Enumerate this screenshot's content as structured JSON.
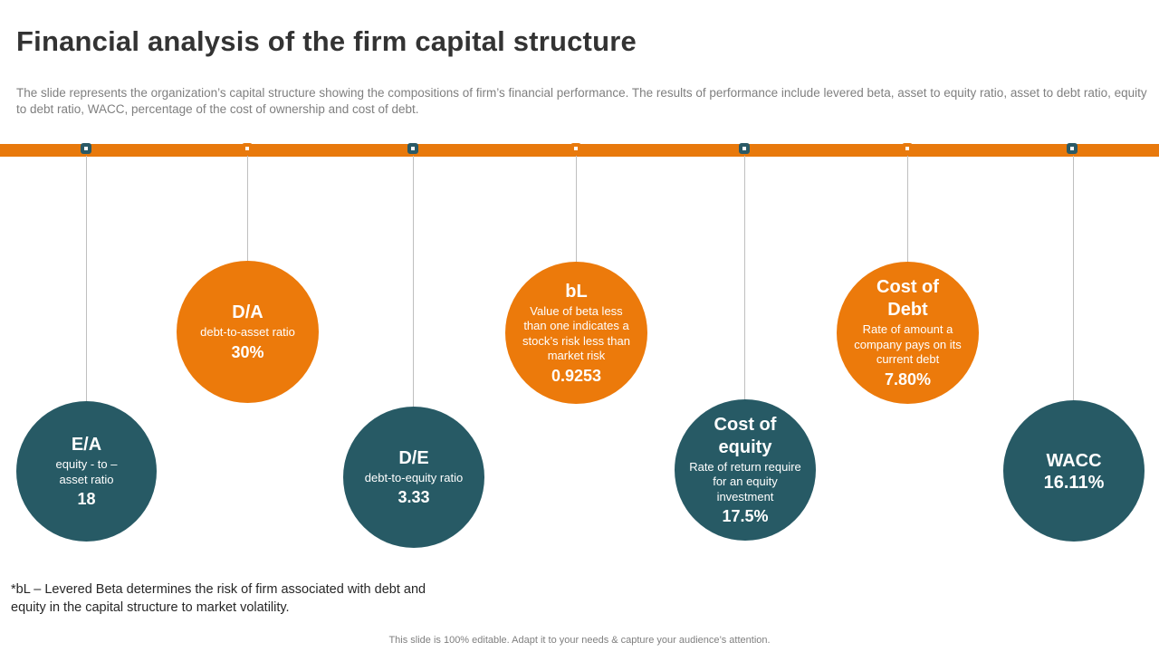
{
  "title": "Financial analysis of the firm capital structure",
  "subtitle": "The slide represents the organization’s capital structure showing the compositions of firm’s financial performance. The results of performance include levered beta, asset to equity ratio, asset to debt ratio, equity to debt ratio, WACC, percentage of the cost of ownership and cost of debt.",
  "colors": {
    "accent": "#e8790c",
    "teal": "#275a65"
  },
  "metrics": [
    {
      "heading": "E/A",
      "desc": "equity - to – asset ratio",
      "value": "18",
      "color": "teal"
    },
    {
      "heading": "D/A",
      "desc": "debt-to-asset ratio",
      "value": "30%",
      "color": "orange"
    },
    {
      "heading": "D/E",
      "desc": "debt-to-equity ratio",
      "value": "3.33",
      "color": "teal"
    },
    {
      "heading": "bL",
      "desc": "Value of beta less than one indicates a stock’s risk less than market risk",
      "value": "0.9253",
      "color": "orange"
    },
    {
      "heading": "Cost of equity",
      "desc": "Rate of return require for an equity investment",
      "value": "17.5%",
      "color": "teal"
    },
    {
      "heading": "Cost of Debt",
      "desc": "Rate of amount  a company pays on its current debt",
      "value": "7.80%",
      "color": "orange"
    },
    {
      "heading": "WACC",
      "value": "16.11%",
      "color": "teal"
    }
  ],
  "footnote": "*bL – Levered Beta determines the risk of firm associated with debt and equity in the capital structure  to market volatility.",
  "footer": "This slide is 100% editable. Adapt it to your needs & capture your audience’s attention."
}
